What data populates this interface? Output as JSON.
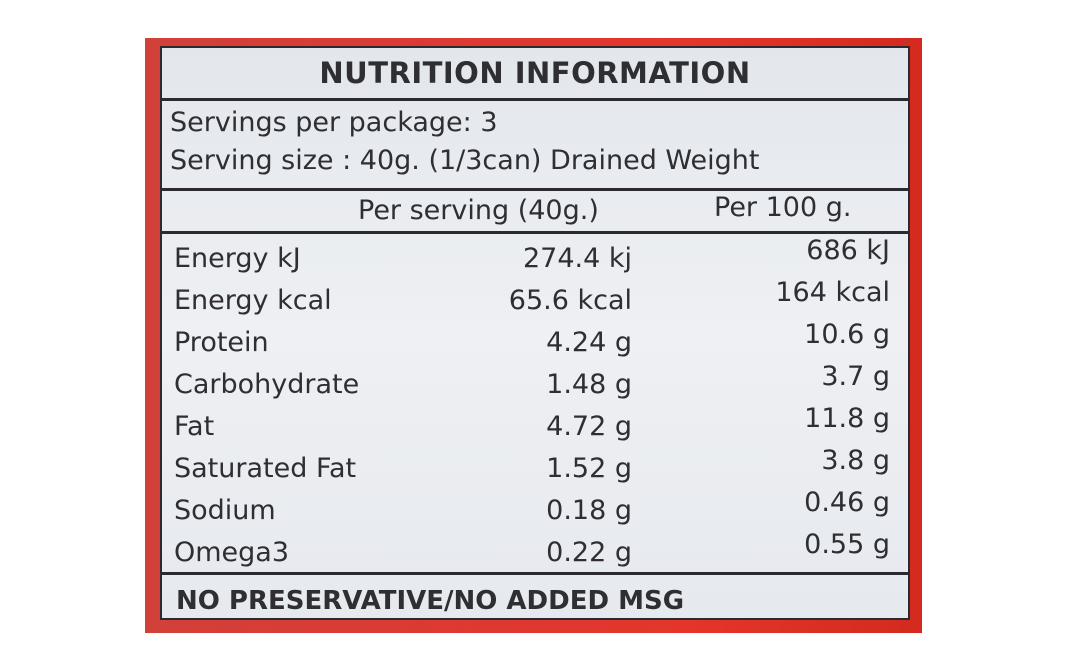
{
  "title": "NUTRITION INFORMATION",
  "servings": [
    "Servings per package: 3",
    "Serving size : 40g. (1/3can) Drained Weight"
  ],
  "table": {
    "header": [
      "Per serving (40g.)",
      "Per 100 g."
    ],
    "rows": [
      [
        "Energy kJ",
        "274.4 kj",
        "686 kJ"
      ],
      [
        "Energy kcal",
        "65.6 kcal",
        "164 kcal"
      ],
      [
        "Protein",
        "4.24 g",
        "10.6 g"
      ],
      [
        "Carbohydrate",
        "1.48 g",
        "3.7 g"
      ],
      [
        "Fat",
        "4.72 g",
        "11.8 g"
      ],
      [
        "Saturated Fat",
        "1.52 g",
        "3.8 g"
      ],
      [
        "Sodium",
        "0.18 g",
        "0.46 g"
      ],
      [
        "Omega3",
        "0.22 g",
        "0.55 g"
      ]
    ]
  },
  "footer": "NO PRESERVATIVE/NO ADDED MSG"
}
